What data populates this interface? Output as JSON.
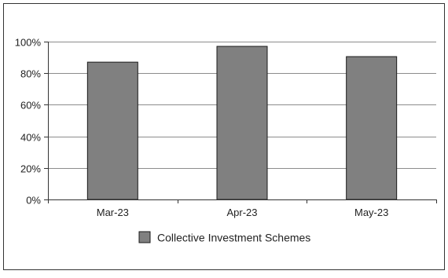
{
  "chart_data": {
    "type": "bar",
    "categories": [
      "Mar-23",
      "Apr-23",
      "May-23"
    ],
    "series": [
      {
        "name": "Collective Investment Schemes",
        "values": [
          87,
          97,
          90.5
        ]
      }
    ],
    "ylim": [
      0,
      100
    ],
    "y_ticks": [
      "0%",
      "20%",
      "40%",
      "60%",
      "80%",
      "100%"
    ],
    "y_tick_values": [
      0,
      20,
      40,
      60,
      80,
      100
    ],
    "grid": true,
    "legend_position": "bottom",
    "title": "",
    "xlabel": "",
    "ylabel": ""
  },
  "colors": {
    "bar_fill": "#808080",
    "bar_stroke": "#1a1a1a",
    "gridline": "#8c8c8c",
    "axis": "#333333",
    "frame": "#333333"
  }
}
